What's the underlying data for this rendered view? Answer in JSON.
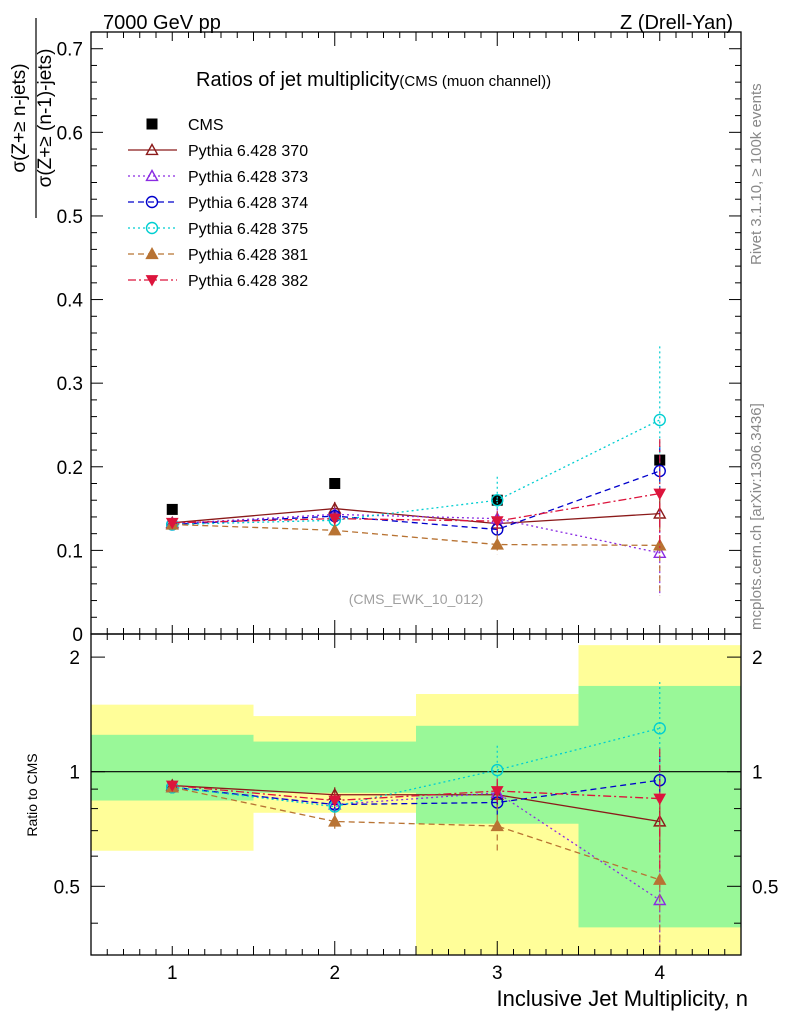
{
  "header": {
    "left": "7000 GeV pp",
    "right": "Z (Drell-Yan)"
  },
  "side_text": {
    "rivet": "Rivet 3.1.10, ≥ 100k events",
    "mcplots": "mcplots.cern.ch [arXiv:1306.3436]"
  },
  "chart_data": [
    {
      "type": "scatter",
      "title": "Ratios of jet multiplicity",
      "subtitle": "(CMS (muon channel))",
      "ylabel_numerator": "σ(Z+≥ n-jets)",
      "ylabel_denominator": "σ(Z+≥ (n-1)-jets)",
      "xlim": [
        0.5,
        4.5
      ],
      "ylim": [
        0,
        0.72
      ],
      "y_ticks": [
        "0",
        "0.1",
        "0.2",
        "0.3",
        "0.4",
        "0.5",
        "0.6",
        "0.7"
      ],
      "legend_position": "top-left",
      "watermark": "(CMS_EWK_10_012)",
      "x": [
        1,
        2,
        3,
        4
      ],
      "series": [
        {
          "name": "CMS",
          "color": "#000000",
          "marker": "square-filled",
          "line": "none",
          "values": [
            0.149,
            0.18,
            0.16,
            0.208
          ]
        },
        {
          "name": "Pythia 6.428 370",
          "color": "#8b1a1a",
          "marker": "triangle-up-open",
          "line": "solid",
          "values": [
            0.133,
            0.15,
            0.132,
            0.144
          ],
          "errors": [
            0.003,
            0.008,
            0.012,
            0.018
          ]
        },
        {
          "name": "Pythia 6.428 373",
          "color": "#8a2be2",
          "marker": "triangle-up-open",
          "line": "dotted",
          "values": [
            0.132,
            0.143,
            0.138,
            0.097
          ],
          "errors": [
            0.003,
            0.007,
            0.012,
            0.05
          ]
        },
        {
          "name": "Pythia 6.428 374",
          "color": "#0000cc",
          "marker": "circle-open",
          "line": "dashed",
          "values": [
            0.131,
            0.141,
            0.125,
            0.195
          ],
          "errors": [
            0.003,
            0.007,
            0.012,
            0.03
          ]
        },
        {
          "name": "Pythia 6.428 375",
          "color": "#00ced1",
          "marker": "circle-open",
          "line": "dotted",
          "values": [
            0.131,
            0.136,
            0.16,
            0.256
          ],
          "errors": [
            0.003,
            0.007,
            0.028,
            0.088
          ]
        },
        {
          "name": "Pythia 6.428 381",
          "color": "#b87333",
          "marker": "triangle-up-filled",
          "line": "dashed",
          "values": [
            0.131,
            0.124,
            0.107,
            0.106
          ],
          "errors": [
            0.003,
            0.006,
            0.012,
            0.06
          ]
        },
        {
          "name": "Pythia 6.428 382",
          "color": "#dc143c",
          "marker": "triangle-down-filled",
          "line": "dashdot",
          "values": [
            0.133,
            0.138,
            0.135,
            0.168
          ],
          "errors": [
            0.003,
            0.007,
            0.012,
            0.065
          ]
        }
      ]
    },
    {
      "type": "scatter",
      "ylabel": "Ratio to CMS",
      "xlabel": "Inclusive Jet Multiplicity, n",
      "xlim": [
        0.5,
        4.5
      ],
      "ylim": [
        0.33,
        2.3
      ],
      "y_scale": "log",
      "x_ticks": [
        "1",
        "2",
        "3",
        "4"
      ],
      "y_ticks": [
        "0.5",
        "1",
        "2"
      ],
      "reference_line": 1,
      "bands": [
        {
          "x_range": [
            0.5,
            1.5
          ],
          "inner": [
            0.84,
            1.25
          ],
          "outer": [
            0.62,
            1.5
          ]
        },
        {
          "x_range": [
            1.5,
            2.5
          ],
          "inner": [
            0.88,
            1.2
          ],
          "outer": [
            0.78,
            1.4
          ]
        },
        {
          "x_range": [
            2.5,
            3.5
          ],
          "inner": [
            0.73,
            1.32
          ],
          "outer": [
            0.33,
            1.6
          ]
        },
        {
          "x_range": [
            3.5,
            4.5
          ],
          "inner": [
            0.39,
            1.68
          ],
          "outer": [
            0.33,
            2.15
          ]
        }
      ],
      "band_colors": {
        "inner": "#99f898",
        "outer": "#fffe99"
      },
      "x": [
        1,
        2,
        3,
        4
      ],
      "series": [
        {
          "name": "Pythia 6.428 370",
          "values": [
            0.92,
            0.87,
            0.87,
            0.74
          ],
          "errors": [
            0.02,
            0.04,
            0.07,
            0.1
          ]
        },
        {
          "name": "Pythia 6.428 373",
          "values": [
            0.91,
            0.82,
            0.88,
            0.46
          ],
          "errors": [
            0.02,
            0.04,
            0.07,
            0.2
          ]
        },
        {
          "name": "Pythia 6.428 374",
          "values": [
            0.91,
            0.82,
            0.83,
            0.95
          ],
          "errors": [
            0.02,
            0.04,
            0.07,
            0.15
          ]
        },
        {
          "name": "Pythia 6.428 375",
          "values": [
            0.91,
            0.81,
            1.01,
            1.3
          ],
          "errors": [
            0.02,
            0.04,
            0.16,
            0.42
          ]
        },
        {
          "name": "Pythia 6.428 381",
          "values": [
            0.91,
            0.74,
            0.72,
            0.52
          ],
          "errors": [
            0.02,
            0.04,
            0.1,
            0.3
          ]
        },
        {
          "name": "Pythia 6.428 382",
          "values": [
            0.92,
            0.84,
            0.89,
            0.85
          ],
          "errors": [
            0.02,
            0.04,
            0.07,
            0.3
          ]
        }
      ]
    }
  ]
}
